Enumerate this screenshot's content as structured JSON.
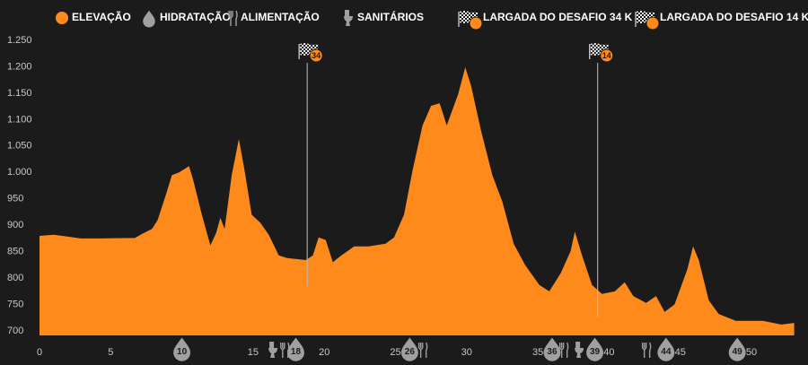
{
  "chart_data": {
    "type": "area",
    "series": [
      {
        "name": "ELEVAÇÃO",
        "color": "#ff8a1c",
        "x": [
          0,
          1,
          1.6,
          2.9,
          4.2,
          6.7,
          7.3,
          7.9,
          8.3,
          8.9,
          9.3,
          9.8,
          10.5,
          10.8,
          11.4,
          12,
          12.4,
          12.7,
          13,
          13.5,
          14,
          14.4,
          14.9,
          15.5,
          16.1,
          16.8,
          17.4,
          18.7,
          19.2,
          19.6,
          20.1,
          20.6,
          21.2,
          22.1,
          23.1,
          24.3,
          24.9,
          25.6,
          26.2,
          26.9,
          27.5,
          28.1,
          28.6,
          29.4,
          29.9,
          30.3,
          31,
          31.8,
          32.5,
          33.3,
          34.1,
          35.1,
          35.8,
          36.6,
          37.3,
          37.6,
          38.1,
          38.8,
          39.5,
          40.4,
          41.1,
          41.7,
          42.6,
          43.3,
          43.9,
          44.6,
          45.5,
          45.9,
          46.3,
          47,
          47.7,
          48.9,
          50.8,
          52.1,
          53
        ],
        "values": [
          880,
          882,
          880,
          875,
          875,
          876,
          885,
          893,
          910,
          960,
          995,
          1000,
          1012,
          985,
          920,
          862,
          885,
          914,
          893,
          995,
          1063,
          1004,
          920,
          905,
          882,
          843,
          838,
          834,
          843,
          877,
          872,
          830,
          843,
          860,
          860,
          865,
          877,
          920,
          1004,
          1089,
          1126,
          1131,
          1089,
          1148,
          1199,
          1165,
          1080,
          995,
          945,
          865,
          825,
          787,
          775,
          809,
          851,
          888,
          843,
          787,
          770,
          775,
          792,
          766,
          753,
          766,
          736,
          750,
          817,
          860,
          834,
          758,
          732,
          719,
          719,
          712,
          715
        ]
      }
    ],
    "ylim": [
      700,
      1250
    ],
    "yticks": [
      700,
      750,
      800,
      850,
      900,
      950,
      {
        "value": 1000,
        "label": "1.000"
      },
      {
        "value": 1050,
        "label": "1.050"
      },
      {
        "value": 1100,
        "label": "1.100"
      },
      {
        "value": 1150,
        "label": "1.150"
      },
      {
        "value": 1200,
        "label": "1.200"
      },
      {
        "value": 1250,
        "label": "1.250"
      }
    ],
    "xlim": [
      0,
      53
    ],
    "xticks": [
      0,
      5,
      15,
      20,
      25,
      30,
      35,
      40,
      45,
      50
    ],
    "hydration": {
      "name": "HIDRATAÇÃO",
      "x": [
        10,
        18,
        26,
        36,
        39,
        44,
        49
      ]
    },
    "food": {
      "name": "ALIMENTAÇÃO",
      "x": [
        17.2,
        26.9,
        36.8,
        42.6
      ]
    },
    "toilet": {
      "name": "SANITÁRIOS",
      "x": [
        16.4,
        37.9
      ]
    },
    "starts": [
      {
        "name": "LARGADA DO DESAFIO 34 K",
        "x": 18.8,
        "label": "34"
      },
      {
        "name": "LARGADA DO DESAFIO 14 K",
        "x": 39.2,
        "label": "14"
      }
    ]
  }
}
